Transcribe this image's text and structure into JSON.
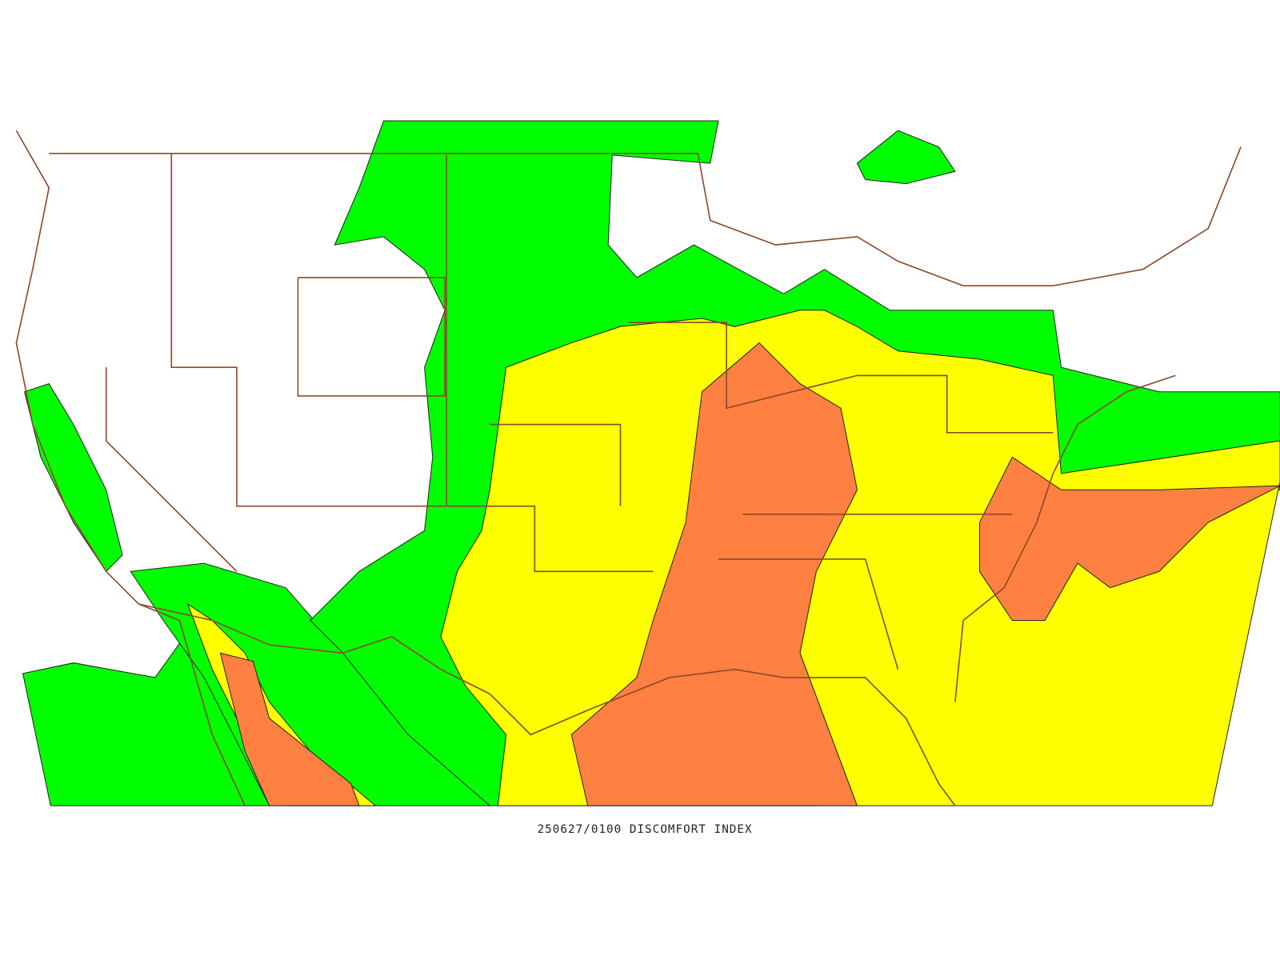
{
  "caption": "250627/0100 DISCOMFORT INDEX"
}
